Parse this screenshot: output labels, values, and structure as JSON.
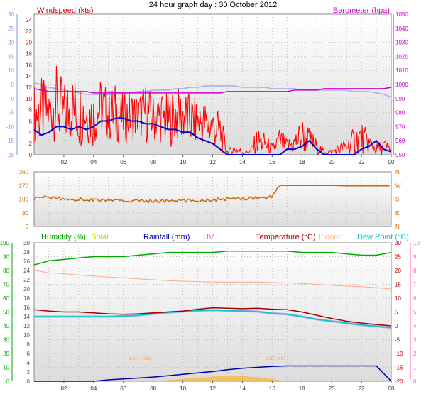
{
  "title": "24 hour graph day : 30 October 2012",
  "colors": {
    "wind": "#ff0000",
    "gust": "#0000cc",
    "baro": "#cc00cc",
    "baro_line": "#aaaaee",
    "direction": "#cc6600",
    "humidity": "#00aa00",
    "solar": "#ffaa00",
    "rain": "#0000aa",
    "uv": "#cc66cc",
    "temp": "#aa0000",
    "indoor": "#ffaa88",
    "dew": "#00cccc",
    "dew_line": "#aaaaee",
    "left_axis_scale": "#8899dd"
  },
  "chart_data": [
    {
      "type": "line",
      "name": "wind-panel",
      "labels": {
        "left": "Windspeed (kts)",
        "right": "Barometer (hpa)"
      },
      "x_ticks": [
        "02",
        "04",
        "06",
        "08",
        "10",
        "12",
        "14",
        "16",
        "18",
        "20",
        "22",
        "00"
      ],
      "y_left_ticks": [
        "0",
        "2",
        "4",
        "6",
        "8",
        "10",
        "12",
        "14",
        "16",
        "18",
        "20",
        "22",
        "24"
      ],
      "y_left_ticks2": [
        "-20",
        "-15",
        "-10",
        "-5",
        "0",
        "5",
        "10",
        "15",
        "20",
        "25",
        "30"
      ],
      "y_right_ticks": [
        "950",
        "960",
        "970",
        "980",
        "990",
        "1000",
        "1010",
        "1020",
        "1030",
        "1040",
        "1050"
      ],
      "ylim_left": [
        0,
        25
      ],
      "ylim_right": [
        950,
        1050
      ],
      "x_hours": [
        0,
        0.5,
        1,
        1.5,
        2,
        2.5,
        3,
        3.5,
        4,
        4.5,
        5,
        5.5,
        6,
        6.5,
        7,
        7.5,
        8,
        8.5,
        9,
        9.5,
        10,
        10.5,
        11,
        11.5,
        12,
        12.5,
        13,
        13.5,
        14,
        14.5,
        15,
        15.5,
        16,
        16.5,
        17,
        17.5,
        18,
        18.5,
        19,
        19.5,
        20,
        20.5,
        21,
        21.5,
        22,
        22.5,
        23,
        23.5,
        24
      ],
      "series": [
        {
          "key": "wind_high",
          "values": [
            13,
            14,
            12,
            16,
            13,
            15,
            14,
            13,
            12,
            14,
            12,
            13,
            11,
            12,
            11,
            13,
            11,
            12,
            11,
            12,
            12,
            11,
            10,
            10,
            9,
            8,
            1,
            2,
            1,
            1,
            5,
            4,
            2,
            5,
            3,
            4,
            7,
            5,
            3,
            1,
            1,
            2,
            3,
            5,
            6,
            4,
            2,
            3,
            2
          ]
        },
        {
          "key": "wind_low",
          "values": [
            2,
            1,
            3,
            2,
            1,
            2,
            1,
            2,
            1,
            3,
            2,
            2,
            2,
            2,
            3,
            2,
            2,
            2,
            1,
            2,
            2,
            1,
            2,
            1,
            1,
            0,
            0,
            0,
            0,
            0,
            0,
            0,
            0,
            0,
            0,
            0,
            0,
            0,
            0,
            0,
            0,
            0,
            0,
            0,
            0,
            0,
            0,
            0,
            0
          ]
        },
        {
          "key": "gust",
          "values": [
            4.5,
            3.5,
            4,
            5,
            5,
            4.5,
            5,
            4.5,
            5,
            6,
            6,
            6.5,
            6.5,
            6,
            6,
            5.5,
            5.5,
            5,
            4.5,
            4.5,
            4,
            4,
            3,
            2.5,
            2,
            1,
            0,
            0,
            0,
            0,
            0,
            0,
            0,
            0,
            1,
            1,
            1.5,
            2.5,
            1,
            0,
            0,
            0,
            0,
            0,
            1,
            1.5,
            2.5,
            1,
            0.5
          ]
        },
        {
          "key": "barometer",
          "values": [
            997,
            996,
            995,
            995,
            995,
            995,
            995,
            995,
            994,
            994,
            994,
            994,
            994,
            994,
            994,
            994,
            994,
            994,
            994,
            994,
            994,
            994,
            994,
            994,
            994,
            994,
            995,
            995,
            995,
            995,
            995,
            995,
            995,
            995,
            995,
            996,
            996,
            996,
            996,
            997,
            997,
            997,
            997,
            997,
            997,
            997,
            997,
            997,
            998
          ]
        },
        {
          "key": "barometer_trend",
          "values": [
            1001,
            1000,
            998,
            997,
            996,
            995,
            994,
            993,
            993,
            993,
            993,
            993,
            994,
            994,
            995,
            995,
            996,
            996,
            996,
            997,
            997,
            998,
            998,
            999,
            999,
            999,
            999,
            999,
            998,
            998,
            998,
            998,
            997,
            997,
            997,
            997,
            996,
            996,
            996,
            996,
            996,
            996,
            996,
            995,
            995,
            995,
            994,
            993,
            991
          ]
        }
      ]
    },
    {
      "type": "line",
      "name": "direction-panel",
      "y_left_ticks": [
        "0",
        "90",
        "180",
        "270",
        "360"
      ],
      "y_right_ticks": [
        "N",
        "E",
        "S",
        "W",
        "N"
      ],
      "ylim": [
        0,
        360
      ],
      "x_hours": [
        0,
        1,
        2,
        3,
        4,
        5,
        6,
        7,
        8,
        9,
        10,
        11,
        12,
        13,
        14,
        15,
        16,
        16.5,
        17,
        18,
        19,
        20,
        21,
        22,
        23,
        24
      ],
      "series": [
        {
          "key": "direction",
          "values": [
            185,
            195,
            180,
            178,
            175,
            172,
            168,
            170,
            168,
            168,
            170,
            172,
            175,
            180,
            185,
            190,
            195,
            270,
            270,
            270,
            270,
            270,
            268,
            268,
            268,
            268
          ]
        }
      ]
    },
    {
      "type": "line",
      "name": "temperature-panel",
      "labels": {
        "humidity": "Humidity  (%)",
        "solar": "Solar",
        "rain": "Rainfall (mm)",
        "uv": "UV",
        "temp": "Temperature (°C)",
        "indoor": "Indoor",
        "dew": "Dew Point (°C)"
      },
      "annotations": {
        "sunrise": "Sun Rise",
        "sunset": "Sun Set"
      },
      "x_ticks": [
        "02",
        "04",
        "06",
        "08",
        "10",
        "12",
        "14",
        "16",
        "18",
        "20",
        "22",
        "00"
      ],
      "y_humidity_ticks": [
        "0",
        "10",
        "20",
        "30",
        "40",
        "50",
        "60",
        "70",
        "80",
        "90",
        "100"
      ],
      "y_temp_left_ticks": [
        "0",
        "2",
        "4",
        "6",
        "8",
        "10",
        "12",
        "14",
        "16",
        "18",
        "20",
        "22",
        "24",
        "26",
        "28",
        "30"
      ],
      "y_temp_right_ticks": [
        "-20",
        "-15",
        "-10",
        "-5",
        "0",
        "5",
        "10",
        "15",
        "20",
        "25",
        "30"
      ],
      "y_uv_ticks": [
        "0",
        "1",
        "2",
        "3",
        "4",
        "5",
        "6",
        "7",
        "8",
        "9",
        "10"
      ],
      "ylim_temp": [
        0,
        30
      ],
      "ylim_humidity": [
        0,
        100
      ],
      "x_hours": [
        0,
        1,
        2,
        3,
        4,
        5,
        6,
        7,
        8,
        9,
        10,
        11,
        12,
        13,
        14,
        15,
        16,
        17,
        18,
        19,
        20,
        21,
        22,
        23,
        24
      ],
      "series": [
        {
          "key": "humidity",
          "values": [
            84,
            87,
            88,
            89,
            90,
            90,
            90,
            91,
            92,
            93,
            93,
            93,
            93,
            94,
            94,
            94,
            94,
            94,
            93,
            93,
            93,
            92,
            91,
            91,
            93
          ]
        },
        {
          "key": "temperature",
          "values": [
            15.5,
            15.2,
            15,
            15,
            14.8,
            14.6,
            14.5,
            14.6,
            14.8,
            15,
            15.2,
            15.6,
            15.9,
            15.8,
            15.7,
            15.8,
            15.6,
            15.5,
            15,
            14.3,
            13.6,
            13,
            12.6,
            12.3,
            12
          ]
        },
        {
          "key": "indoor",
          "values": [
            24,
            23.5,
            23.3,
            23,
            22.8,
            22.6,
            22.4,
            22.2,
            22,
            21.8,
            21.7,
            21.6,
            21.5,
            21.5,
            21.5,
            21.5,
            21.4,
            21.3,
            21.2,
            21,
            20.8,
            20.6,
            20.5,
            20.3,
            20
          ]
        },
        {
          "key": "dew_point",
          "values": [
            14,
            14,
            14,
            14,
            14,
            14,
            14.1,
            14.3,
            14.6,
            14.9,
            15.1,
            15.3,
            15.4,
            15.3,
            15.2,
            15.1,
            14.7,
            14.5,
            14,
            13.4,
            13,
            12.6,
            12.2,
            11.9,
            11.6
          ]
        },
        {
          "key": "rain_total",
          "values": [
            0,
            0,
            0,
            0,
            0,
            0.3,
            0.5,
            0.7,
            0.9,
            1.2,
            1.5,
            1.8,
            2.1,
            2.5,
            2.8,
            3,
            3.2,
            3.3,
            3.3,
            3.3,
            3.3,
            3.3,
            3.3,
            3.3,
            0
          ]
        },
        {
          "key": "solar",
          "values": [
            0,
            0,
            0,
            0,
            0,
            0,
            0,
            0,
            0,
            0.2,
            0.4,
            0.6,
            0.8,
            1,
            0.9,
            0.7,
            0.4,
            0,
            0,
            0,
            0,
            0,
            0,
            0,
            0
          ]
        }
      ]
    }
  ]
}
